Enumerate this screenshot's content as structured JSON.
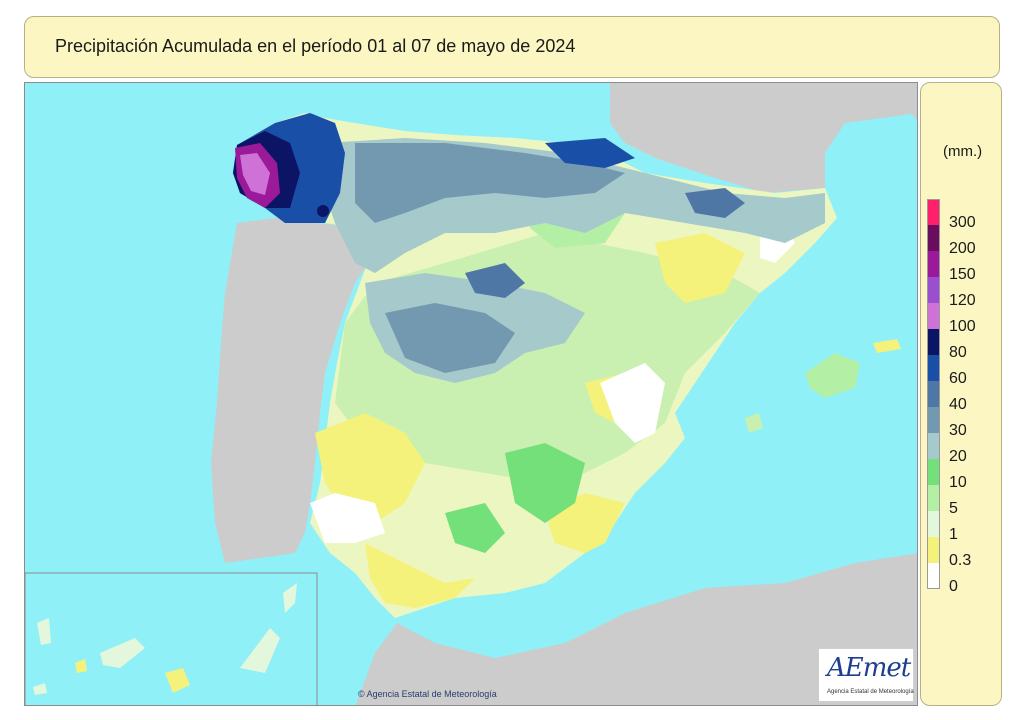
{
  "title": "Precipitación Acumulada en el período 01 al 07 de mayo de 2024",
  "legend": {
    "unit": "(mm.)",
    "items": [
      {
        "label": "300",
        "color": "#ff1f6b"
      },
      {
        "label": "200",
        "color": "#6b0d5e"
      },
      {
        "label": "150",
        "color": "#9a1a9a"
      },
      {
        "label": "120",
        "color": "#9a4fd1"
      },
      {
        "label": "100",
        "color": "#cf72d8"
      },
      {
        "label": "80",
        "color": "#0c1466"
      },
      {
        "label": "60",
        "color": "#1a4fa8"
      },
      {
        "label": "40",
        "color": "#4f77a6"
      },
      {
        "label": "30",
        "color": "#7399b0"
      },
      {
        "label": "20",
        "color": "#a6c9cc"
      },
      {
        "label": "10",
        "color": "#73e07a"
      },
      {
        "label": "5",
        "color": "#b3f0a6"
      },
      {
        "label": "1",
        "color": "#e3f7dc"
      },
      {
        "label": "0.3",
        "color": "#f4f27a"
      },
      {
        "label": "0",
        "color": "#ffffff"
      }
    ]
  },
  "credit": "© Agencia Estatal de Meteorología",
  "logo": {
    "text": "AEmet",
    "subtitle": "Agencia Estatal de Meteorología"
  },
  "colors": {
    "sea": "#8ff0f7",
    "land_outside": "#cccccc",
    "panel": "#fcf6c2"
  }
}
